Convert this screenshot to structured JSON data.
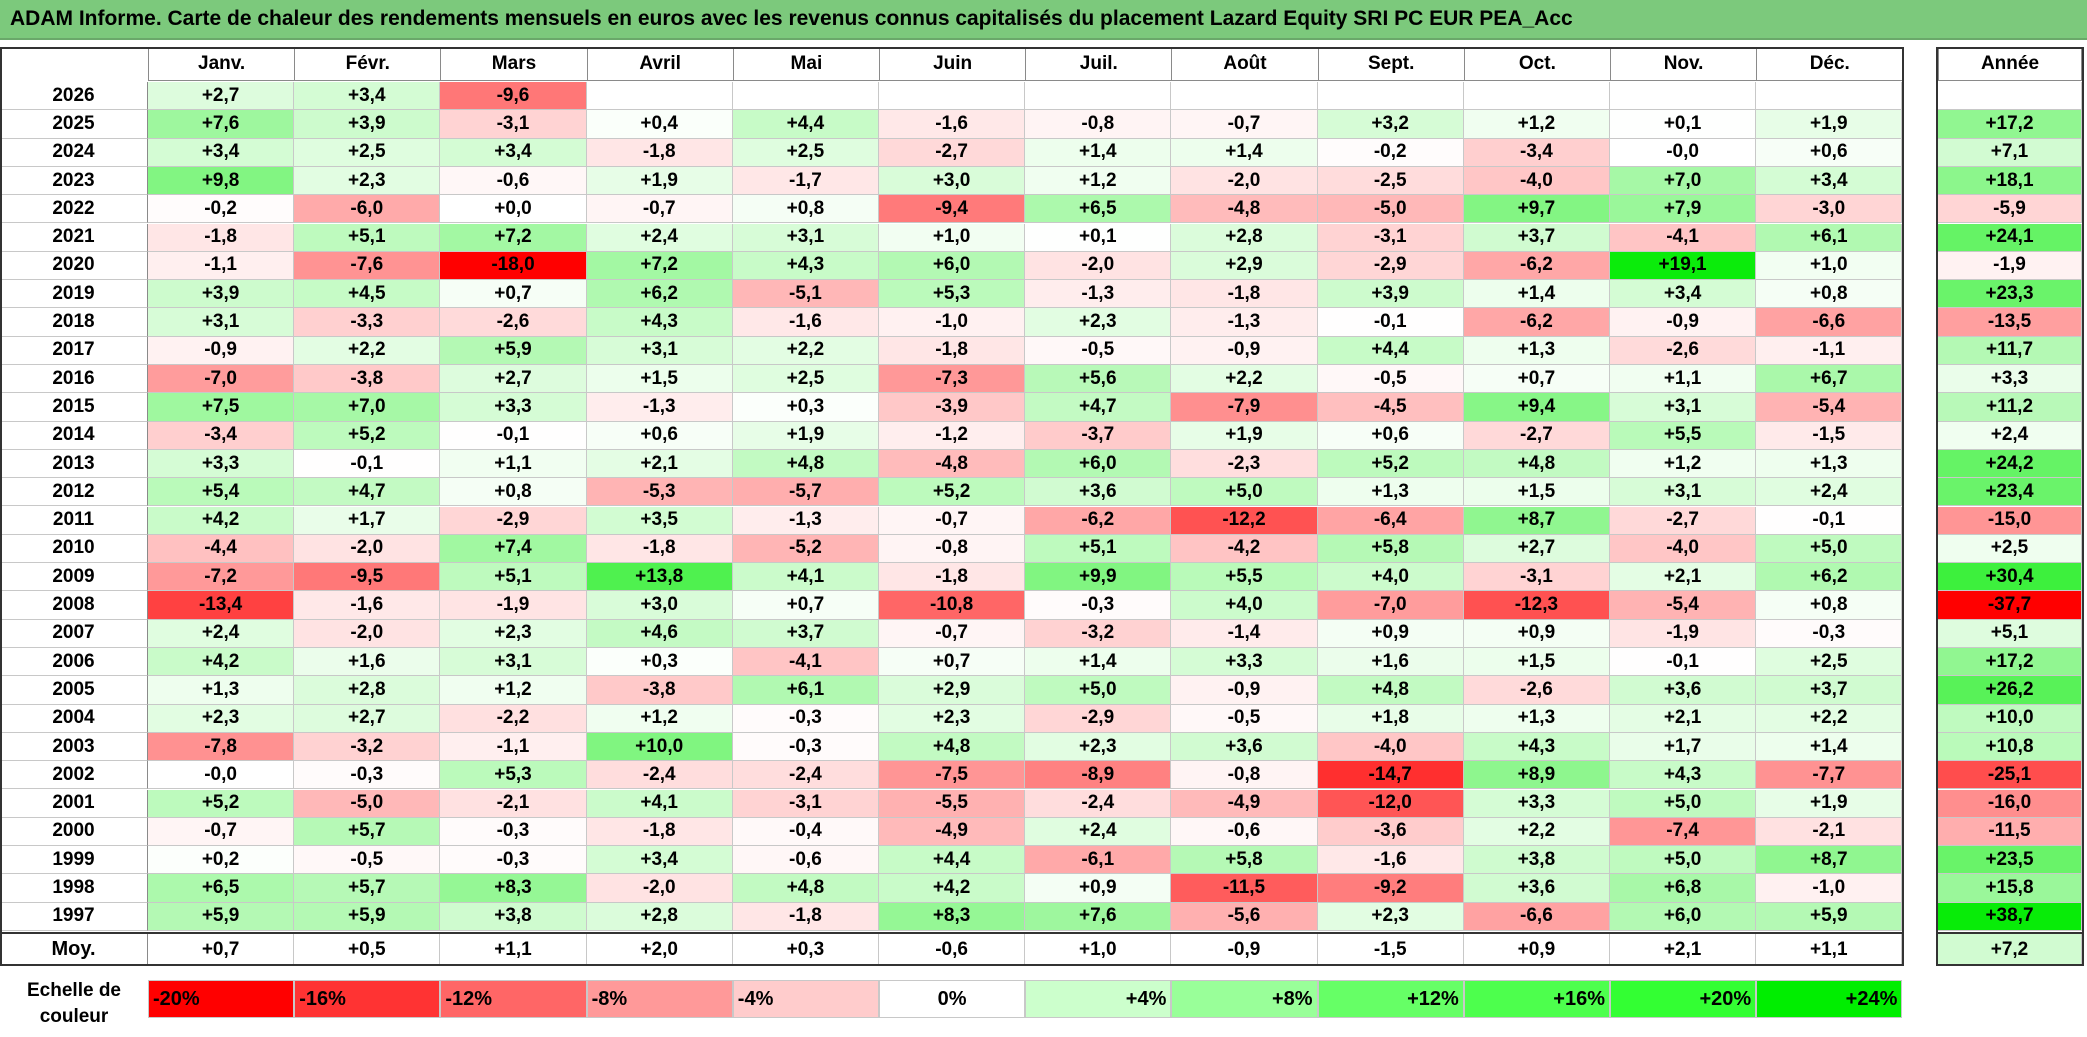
{
  "title": "ADAM Informe. Carte de chaleur des rendements mensuels en euros avec les revenus connus capitalisés du placement Lazard Equity SRI PC EUR PEA_Acc",
  "chart_data": {
    "type": "heatmap",
    "months": [
      "Janv.",
      "Févr.",
      "Mars",
      "Avril",
      "Mai",
      "Juin",
      "Juil.",
      "Août",
      "Sept.",
      "Oct.",
      "Nov.",
      "Déc."
    ],
    "year_column_label": "Année",
    "rows": [
      {
        "year": "2026",
        "months": [
          "+2,7",
          "+3,4",
          "-9,6",
          "",
          "",
          "",
          "",
          "",
          "",
          "",
          "",
          ""
        ],
        "annual": ""
      },
      {
        "year": "2025",
        "months": [
          "+7,6",
          "+3,9",
          "-3,1",
          "+0,4",
          "+4,4",
          "-1,6",
          "-0,8",
          "-0,7",
          "+3,2",
          "+1,2",
          "+0,1",
          "+1,9"
        ],
        "annual": "+17,2"
      },
      {
        "year": "2024",
        "months": [
          "+3,4",
          "+2,5",
          "+3,4",
          "-1,8",
          "+2,5",
          "-2,7",
          "+1,4",
          "+1,4",
          "-0,2",
          "-3,4",
          "-0,0",
          "+0,6"
        ],
        "annual": "+7,1"
      },
      {
        "year": "2023",
        "months": [
          "+9,8",
          "+2,3",
          "-0,6",
          "+1,9",
          "-1,7",
          "+3,0",
          "+1,2",
          "-2,0",
          "-2,5",
          "-4,0",
          "+7,0",
          "+3,4"
        ],
        "annual": "+18,1"
      },
      {
        "year": "2022",
        "months": [
          "-0,2",
          "-6,0",
          "+0,0",
          "-0,7",
          "+0,8",
          "-9,4",
          "+6,5",
          "-4,8",
          "-5,0",
          "+9,7",
          "+7,9",
          "-3,0"
        ],
        "annual": "-5,9"
      },
      {
        "year": "2021",
        "months": [
          "-1,8",
          "+5,1",
          "+7,2",
          "+2,4",
          "+3,1",
          "+1,0",
          "+0,1",
          "+2,8",
          "-3,1",
          "+3,7",
          "-4,1",
          "+6,1"
        ],
        "annual": "+24,1"
      },
      {
        "year": "2020",
        "months": [
          "-1,1",
          "-7,6",
          "-18,0",
          "+7,2",
          "+4,3",
          "+6,0",
          "-2,0",
          "+2,9",
          "-2,9",
          "-6,2",
          "+19,1",
          "+1,0"
        ],
        "annual": "-1,9"
      },
      {
        "year": "2019",
        "months": [
          "+3,9",
          "+4,5",
          "+0,7",
          "+6,2",
          "-5,1",
          "+5,3",
          "-1,3",
          "-1,8",
          "+3,9",
          "+1,4",
          "+3,4",
          "+0,8"
        ],
        "annual": "+23,3"
      },
      {
        "year": "2018",
        "months": [
          "+3,1",
          "-3,3",
          "-2,6",
          "+4,3",
          "-1,6",
          "-1,0",
          "+2,3",
          "-1,3",
          "-0,1",
          "-6,2",
          "-0,9",
          "-6,6"
        ],
        "annual": "-13,5"
      },
      {
        "year": "2017",
        "months": [
          "-0,9",
          "+2,2",
          "+5,9",
          "+3,1",
          "+2,2",
          "-1,8",
          "-0,5",
          "-0,9",
          "+4,4",
          "+1,3",
          "-2,6",
          "-1,1"
        ],
        "annual": "+11,7"
      },
      {
        "year": "2016",
        "months": [
          "-7,0",
          "-3,8",
          "+2,7",
          "+1,5",
          "+2,5",
          "-7,3",
          "+5,6",
          "+2,2",
          "-0,5",
          "+0,7",
          "+1,1",
          "+6,7"
        ],
        "annual": "+3,3"
      },
      {
        "year": "2015",
        "months": [
          "+7,5",
          "+7,0",
          "+3,3",
          "-1,3",
          "+0,3",
          "-3,9",
          "+4,7",
          "-7,9",
          "-4,5",
          "+9,4",
          "+3,1",
          "-5,4"
        ],
        "annual": "+11,2"
      },
      {
        "year": "2014",
        "months": [
          "-3,4",
          "+5,2",
          "-0,1",
          "+0,6",
          "+1,9",
          "-1,2",
          "-3,7",
          "+1,9",
          "+0,6",
          "-2,7",
          "+5,5",
          "-1,5"
        ],
        "annual": "+2,4"
      },
      {
        "year": "2013",
        "months": [
          "+3,3",
          "-0,1",
          "+1,1",
          "+2,1",
          "+4,8",
          "-4,8",
          "+6,0",
          "-2,3",
          "+5,2",
          "+4,8",
          "+1,2",
          "+1,3"
        ],
        "annual": "+24,2"
      },
      {
        "year": "2012",
        "months": [
          "+5,4",
          "+4,7",
          "+0,8",
          "-5,3",
          "-5,7",
          "+5,2",
          "+3,6",
          "+5,0",
          "+1,3",
          "+1,5",
          "+3,1",
          "+2,4"
        ],
        "annual": "+23,4"
      },
      {
        "year": "2011",
        "months": [
          "+4,2",
          "+1,7",
          "-2,9",
          "+3,5",
          "-1,3",
          "-0,7",
          "-6,2",
          "-12,2",
          "-6,4",
          "+8,7",
          "-2,7",
          "-0,1"
        ],
        "annual": "-15,0"
      },
      {
        "year": "2010",
        "months": [
          "-4,4",
          "-2,0",
          "+7,4",
          "-1,8",
          "-5,2",
          "-0,8",
          "+5,1",
          "-4,2",
          "+5,8",
          "+2,7",
          "-4,0",
          "+5,0"
        ],
        "annual": "+2,5"
      },
      {
        "year": "2009",
        "months": [
          "-7,2",
          "-9,5",
          "+5,1",
          "+13,8",
          "+4,1",
          "-1,8",
          "+9,9",
          "+5,5",
          "+4,0",
          "-3,1",
          "+2,1",
          "+6,2"
        ],
        "annual": "+30,4"
      },
      {
        "year": "2008",
        "months": [
          "-13,4",
          "-1,6",
          "-1,9",
          "+3,0",
          "+0,7",
          "-10,8",
          "-0,3",
          "+4,0",
          "-7,0",
          "-12,3",
          "-5,4",
          "+0,8"
        ],
        "annual": "-37,7"
      },
      {
        "year": "2007",
        "months": [
          "+2,4",
          "-2,0",
          "+2,3",
          "+4,6",
          "+3,7",
          "-0,7",
          "-3,2",
          "-1,4",
          "+0,9",
          "+0,9",
          "-1,9",
          "-0,3"
        ],
        "annual": "+5,1"
      },
      {
        "year": "2006",
        "months": [
          "+4,2",
          "+1,6",
          "+3,1",
          "+0,3",
          "-4,1",
          "+0,7",
          "+1,4",
          "+3,3",
          "+1,6",
          "+1,5",
          "-0,1",
          "+2,5"
        ],
        "annual": "+17,2"
      },
      {
        "year": "2005",
        "months": [
          "+1,3",
          "+2,8",
          "+1,2",
          "-3,8",
          "+6,1",
          "+2,9",
          "+5,0",
          "-0,9",
          "+4,8",
          "-2,6",
          "+3,6",
          "+3,7"
        ],
        "annual": "+26,2"
      },
      {
        "year": "2004",
        "months": [
          "+2,3",
          "+2,7",
          "-2,2",
          "+1,2",
          "-0,3",
          "+2,3",
          "-2,9",
          "-0,5",
          "+1,8",
          "+1,3",
          "+2,1",
          "+2,2"
        ],
        "annual": "+10,0"
      },
      {
        "year": "2003",
        "months": [
          "-7,8",
          "-3,2",
          "-1,1",
          "+10,0",
          "-0,3",
          "+4,8",
          "+2,3",
          "+3,6",
          "-4,0",
          "+4,3",
          "+1,7",
          "+1,4"
        ],
        "annual": "+10,8"
      },
      {
        "year": "2002",
        "months": [
          "-0,0",
          "-0,3",
          "+5,3",
          "-2,4",
          "-2,4",
          "-7,5",
          "-8,9",
          "-0,8",
          "-14,7",
          "+8,9",
          "+4,3",
          "-7,7"
        ],
        "annual": "-25,1"
      },
      {
        "year": "2001",
        "months": [
          "+5,2",
          "-5,0",
          "-2,1",
          "+4,1",
          "-3,1",
          "-5,5",
          "-2,4",
          "-4,9",
          "-12,0",
          "+3,3",
          "+5,0",
          "+1,9"
        ],
        "annual": "-16,0"
      },
      {
        "year": "2000",
        "months": [
          "-0,7",
          "+5,7",
          "-0,3",
          "-1,8",
          "-0,4",
          "-4,9",
          "+2,4",
          "-0,6",
          "-3,6",
          "+2,2",
          "-7,4",
          "-2,1"
        ],
        "annual": "-11,5"
      },
      {
        "year": "1999",
        "months": [
          "+0,2",
          "-0,5",
          "-0,3",
          "+3,4",
          "-0,6",
          "+4,4",
          "-6,1",
          "+5,8",
          "-1,6",
          "+3,8",
          "+5,0",
          "+8,7"
        ],
        "annual": "+23,5"
      },
      {
        "year": "1998",
        "months": [
          "+6,5",
          "+5,7",
          "+8,3",
          "-2,0",
          "+4,8",
          "+4,2",
          "+0,9",
          "-11,5",
          "-9,2",
          "+3,6",
          "+6,8",
          "-1,0"
        ],
        "annual": "+15,8"
      },
      {
        "year": "1997",
        "months": [
          "+5,9",
          "+5,9",
          "+3,8",
          "+2,8",
          "-1,8",
          "+8,3",
          "+7,6",
          "-5,6",
          "+2,3",
          "-6,6",
          "+6,0",
          "+5,9"
        ],
        "annual": "+38,7"
      }
    ],
    "average": {
      "label": "Moy.",
      "months": [
        "+0,7",
        "+0,5",
        "+1,1",
        "+2,0",
        "+0,3",
        "-0,6",
        "+1,0",
        "-0,9",
        "-1,5",
        "+0,9",
        "+2,1",
        "+1,1"
      ],
      "annual": "+7,2"
    },
    "color_scale": {
      "label": "Echelle de couleur",
      "steps": [
        {
          "label": "-20%",
          "value": -20,
          "color": "#ff0000"
        },
        {
          "label": "-16%",
          "value": -16,
          "color": "#ff3333"
        },
        {
          "label": "-12%",
          "value": -12,
          "color": "#ff6666"
        },
        {
          "label": "-8%",
          "value": -8,
          "color": "#ff9999"
        },
        {
          "label": "-4%",
          "value": -4,
          "color": "#ffcccc"
        },
        {
          "label": "0%",
          "value": 0,
          "color": "#ffffff"
        },
        {
          "label": "+4%",
          "value": 4,
          "color": "#ccffcc"
        },
        {
          "label": "+8%",
          "value": 8,
          "color": "#99ff99"
        },
        {
          "label": "+12%",
          "value": 12,
          "color": "#66ff66"
        },
        {
          "label": "+16%",
          "value": 16,
          "color": "#4dff4d"
        },
        {
          "label": "+20%",
          "value": 20,
          "color": "#33ff33"
        },
        {
          "label": "+24%",
          "value": 24,
          "color": "#00ee00"
        }
      ]
    }
  }
}
